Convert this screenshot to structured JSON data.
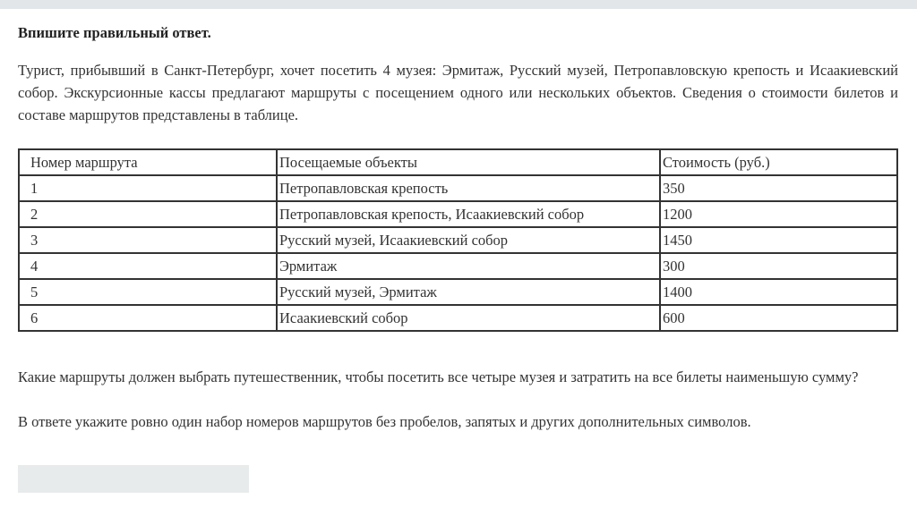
{
  "colors": {
    "topbar": "#e3e6e8",
    "answer_field": "#e8ebec"
  },
  "instruction": "Впишите правильный ответ.",
  "intro": "Турист, прибывший в Санкт-Петербург, хочет посетить 4 музея: Эрмитаж, Русский музей, Петропавловскую крепость и Исаакиевский собор. Экскурсионные кассы предлагают маршруты с посещением одного или нескольких объектов. Сведения о стоимости билетов и составе маршрутов представлены в таблице.",
  "table": {
    "headers": [
      "Номер маршрута",
      "Посещаемые объекты",
      "Стоимость (руб.)"
    ],
    "rows": [
      [
        "1",
        "Петропавловская крепость",
        "350"
      ],
      [
        "2",
        "Петропавловская крепость, Исаакиевский собор",
        "1200"
      ],
      [
        "3",
        "Русский музей, Исаакиевский собор",
        "1450"
      ],
      [
        "4",
        "Эрмитаж",
        "300"
      ],
      [
        "5",
        "Русский музей, Эрмитаж",
        "1400"
      ],
      [
        "6",
        "Исаакиевский собор",
        "600"
      ]
    ]
  },
  "question": "Какие маршруты должен выбрать путешественник, чтобы посетить все четыре музея и затратить на все билеты наименьшую сумму?",
  "note": "В ответе укажите ровно один набор номеров маршрутов без пробелов, запятых и других дополнительных символов.",
  "answer": {
    "value": ""
  }
}
